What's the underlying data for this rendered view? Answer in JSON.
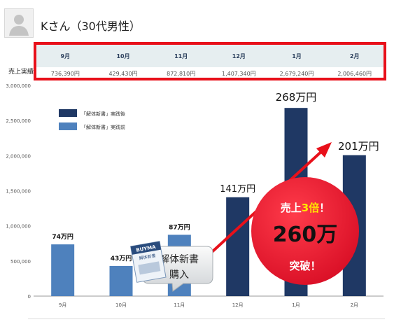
{
  "person": {
    "name": "Kさん（30代男性）"
  },
  "table": {
    "row_label": "売上実績",
    "months": [
      "9月",
      "10月",
      "11月",
      "12月",
      "1月",
      "2月"
    ],
    "values": [
      "736,390円",
      "429,430円",
      "872,810円",
      "1,407,340円",
      "2,679,240円",
      "2,006,460円"
    ]
  },
  "chart_data": {
    "type": "bar",
    "categories": [
      "9月",
      "10月",
      "11月",
      "12月",
      "1月",
      "2月"
    ],
    "series": [
      {
        "name": "「解体新書」実践前",
        "values": [
          736390,
          429430,
          872810,
          null,
          null,
          null
        ]
      },
      {
        "name": "「解体新書」実践後",
        "values": [
          null,
          null,
          null,
          1407340,
          2679240,
          2006460
        ]
      }
    ],
    "ylim": [
      0,
      3000000
    ],
    "y_ticks": [
      "0",
      "500,000",
      "1,000,000",
      "1,500,000",
      "2,000,000",
      "2,500,000",
      "3,000,000"
    ],
    "data_labels": [
      "74万円",
      "43万円",
      "87万円",
      "141万円",
      "268万円",
      "201万円"
    ],
    "legend_position": "top-left",
    "colors": {
      "before": "#4e81bd",
      "after": "#1f3864",
      "accent": "#e8101a"
    },
    "annotations": {
      "purchase": {
        "line1": "解体新書",
        "line2": "購入"
      },
      "book": {
        "line1": "BUYMA",
        "line2": "解体新書"
      },
      "badge": {
        "line1_pre": "売上",
        "line1_mult": "3倍",
        "line1_post": "！",
        "amount": "260万",
        "line3": "突破！"
      }
    }
  }
}
